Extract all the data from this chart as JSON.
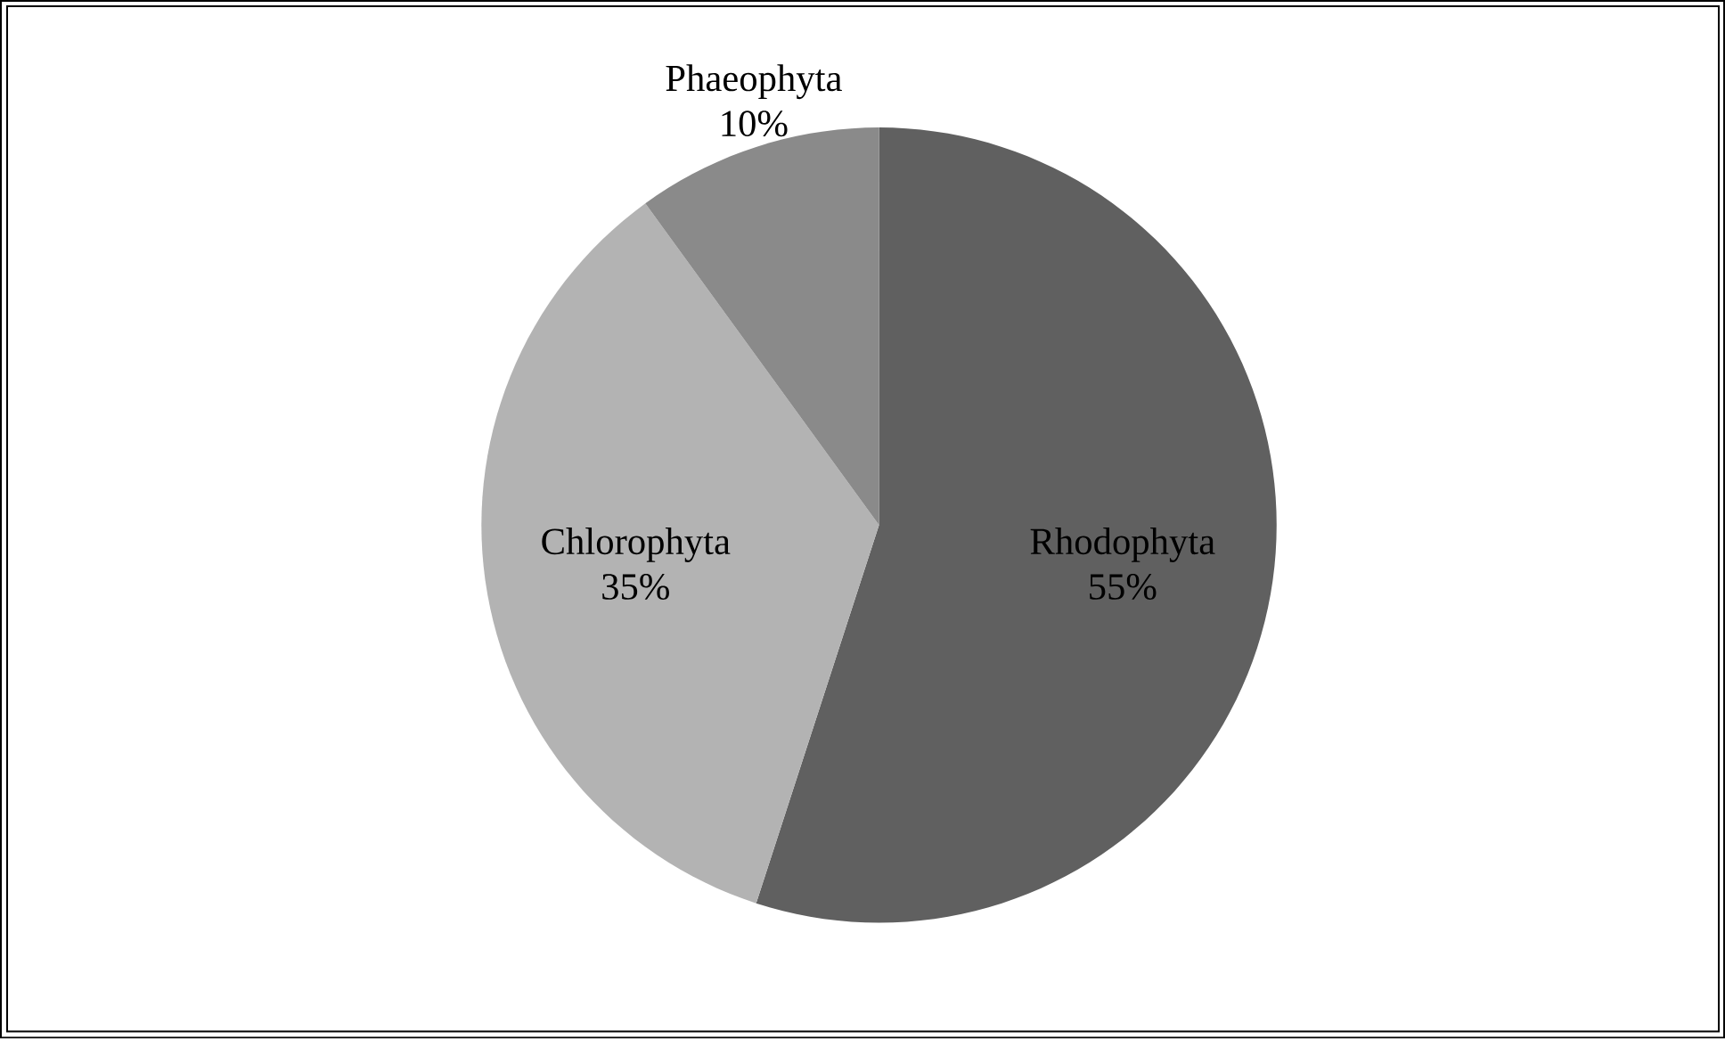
{
  "chart_data": {
    "type": "pie",
    "categories": [
      "Rhodophyta",
      "Chlorophyta",
      "Phaeophyta"
    ],
    "values": [
      55,
      35,
      10
    ],
    "value_labels": [
      "55%",
      "35%",
      "10%"
    ],
    "colors": [
      "#606060",
      "#b3b3b3",
      "#8a8a8a"
    ]
  }
}
